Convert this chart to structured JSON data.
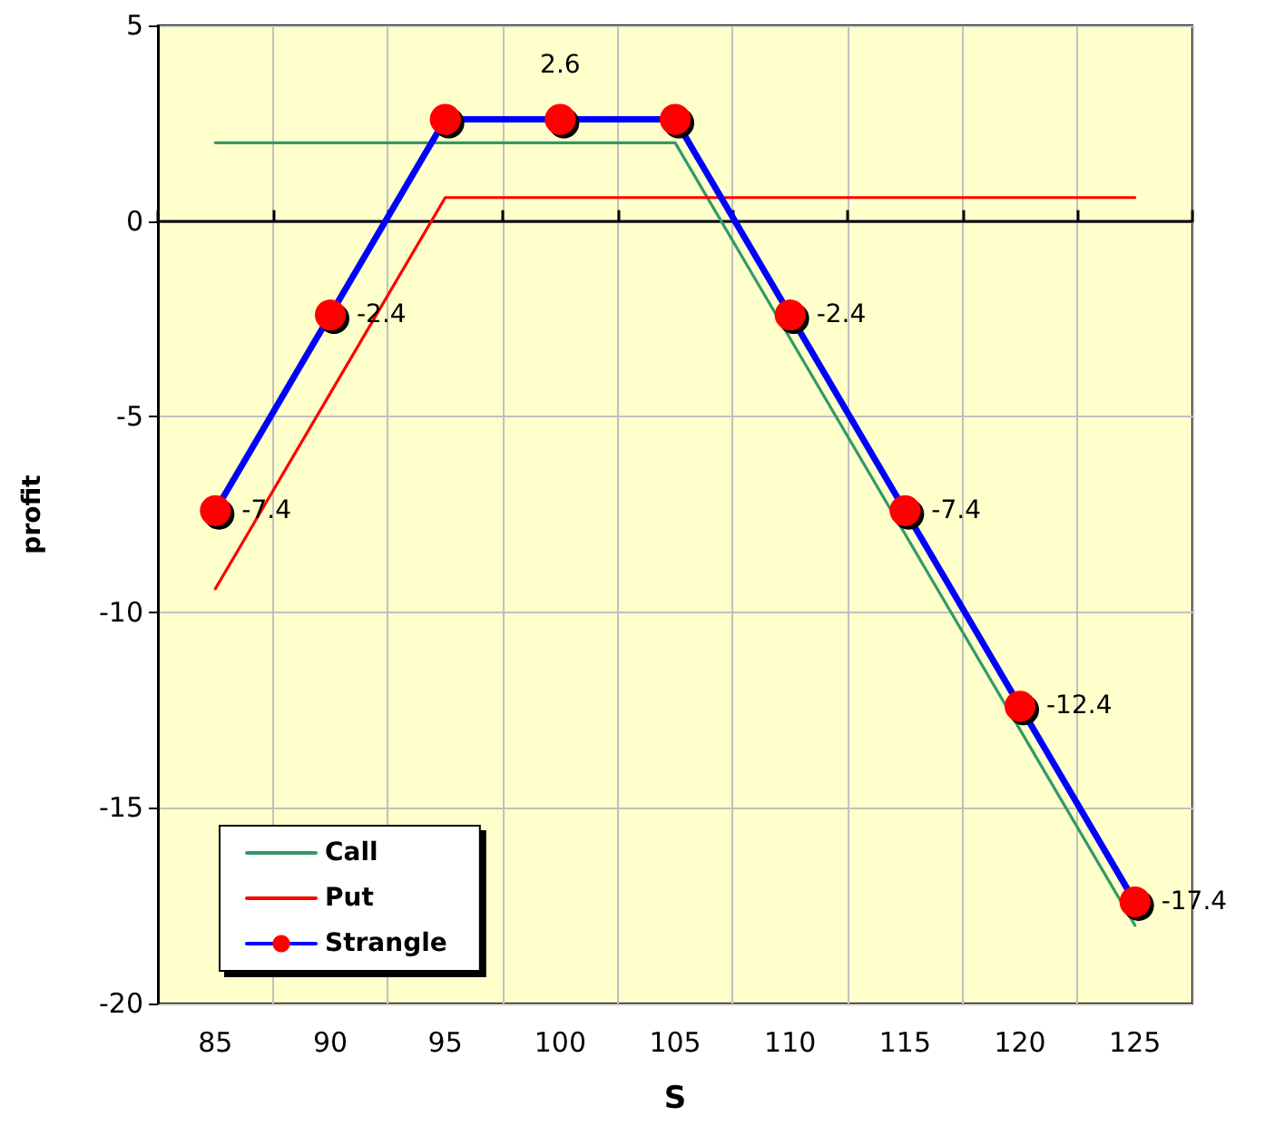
{
  "chart_data": {
    "type": "line",
    "xlabel": "S",
    "ylabel": "profit",
    "categories": [
      "85",
      "90",
      "95",
      "100",
      "105",
      "110",
      "115",
      "120",
      "125"
    ],
    "series": [
      {
        "name": "Call",
        "color": "#339966",
        "marker": "none",
        "values": [
          2,
          2,
          2,
          2,
          2,
          -3,
          -8,
          -13,
          -18
        ]
      },
      {
        "name": "Put",
        "color": "#ff0000",
        "marker": "none",
        "values": [
          -9.4,
          -4.4,
          0.6,
          0.6,
          0.6,
          0.6,
          0.6,
          0.6,
          0.6
        ]
      },
      {
        "name": "Strangle",
        "color": "#0000ff",
        "marker": "circle",
        "values": [
          -7.4,
          -2.4,
          2.6,
          2.6,
          2.6,
          -2.4,
          -7.4,
          -12.4,
          -17.4
        ],
        "value_labels": [
          "-7.4",
          "-2.4",
          null,
          "2.6",
          null,
          "-2.4",
          "-7.4",
          "-12.4",
          "-17.4"
        ]
      }
    ],
    "ylim": [
      -20,
      5
    ],
    "yticks": [
      -20,
      -15,
      -10,
      -5,
      0,
      5
    ],
    "grid": true,
    "legend": "bottom left"
  }
}
